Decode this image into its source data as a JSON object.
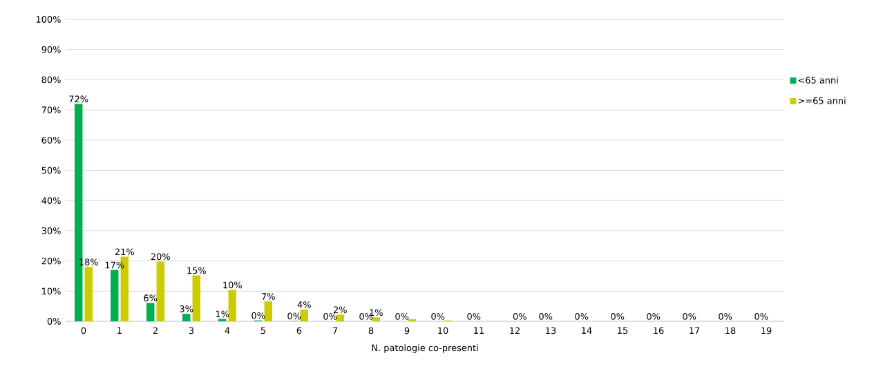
{
  "chart_data": {
    "type": "bar",
    "xlabel": "N. patologie co-presenti",
    "categories": [
      "0",
      "1",
      "2",
      "3",
      "4",
      "5",
      "6",
      "7",
      "8",
      "9",
      "10",
      "11",
      "12",
      "13",
      "14",
      "15",
      "16",
      "17",
      "18",
      "19"
    ],
    "series": [
      {
        "name": "<65 anni",
        "color": "#00b050",
        "values": [
          72,
          17,
          6.1,
          2.5,
          0.8,
          0.3,
          0.1,
          0,
          0,
          0,
          0,
          0,
          0,
          0,
          0,
          0,
          0,
          0,
          0,
          0
        ],
        "value_labels": [
          "72%",
          "17%",
          "6%",
          "3%",
          "1%",
          "0%",
          "0%",
          "0%",
          "0%",
          "0%",
          "0%",
          "0%",
          null,
          "0%",
          "0%",
          "0%",
          "0%",
          "0%",
          "0%",
          "0%"
        ]
      },
      {
        "name": ">=65 anni",
        "color": "#cccc00",
        "values": [
          18,
          21.4,
          19.8,
          15.2,
          10.4,
          6.6,
          3.9,
          2.2,
          1.3,
          0.7,
          0.3,
          0,
          0,
          0,
          0,
          0,
          0,
          0,
          0,
          0
        ],
        "value_labels": [
          "18%",
          "21%",
          "20%",
          "15%",
          "10%",
          "7%",
          "4%",
          "2%",
          "1%",
          null,
          null,
          null,
          "0%",
          null,
          null,
          null,
          null,
          null,
          null,
          null
        ]
      }
    ],
    "ylim": [
      0,
      100
    ],
    "yticks": [
      {
        "value": 0,
        "label": "0%"
      },
      {
        "value": 10,
        "label": "10%"
      },
      {
        "value": 20,
        "label": "20%"
      },
      {
        "value": 30,
        "label": "30%"
      },
      {
        "value": 40,
        "label": "40%"
      },
      {
        "value": 50,
        "label": "50%"
      },
      {
        "value": 60,
        "label": "60%"
      },
      {
        "value": 70,
        "label": "70%"
      },
      {
        "value": 80,
        "label": "80%"
      },
      {
        "value": 90,
        "label": "90%"
      },
      {
        "value": 100,
        "label": "100%"
      }
    ],
    "grid": "y",
    "legend": "right"
  }
}
